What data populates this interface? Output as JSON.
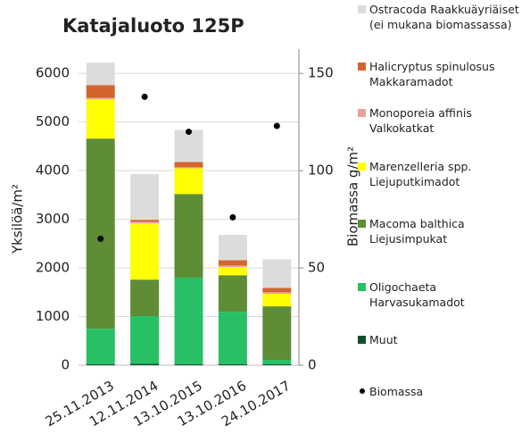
{
  "chart_data": {
    "type": "bar",
    "stacked": true,
    "title": "Katajaluoto 125P",
    "y_label": "Yksilöä/m²",
    "y2_label": "Biomassa g/m²",
    "categories": [
      "25.11.2013",
      "12.11.2014",
      "13.10.2015",
      "13.10.2016",
      "24.10.2017"
    ],
    "ylim": [
      0,
      6500
    ],
    "yticks": [
      0,
      1000,
      2000,
      3000,
      4000,
      5000,
      6000
    ],
    "y2lim": [
      0,
      162.5
    ],
    "y2ticks": [
      0,
      50,
      100,
      150
    ],
    "grid": true,
    "series": [
      {
        "name": "Muut",
        "color": "#0d4f2c",
        "values": [
          20,
          30,
          20,
          20,
          20
        ]
      },
      {
        "name": "Oligochaeta Harvasukamadot",
        "color": "#27c065",
        "values": [
          730,
          980,
          1780,
          1080,
          90
        ]
      },
      {
        "name": "Macoma balthica Liejusimpukat",
        "color": "#5f8d35",
        "values": [
          3910,
          750,
          1720,
          750,
          1100
        ]
      },
      {
        "name": "Marenzelleria spp. Liejuputkimadot",
        "color": "#ffff00",
        "values": [
          810,
          1160,
          530,
          170,
          260
        ]
      },
      {
        "name": "Monoporeia affinis Valkokatkat",
        "color": "#e8a09a",
        "values": [
          30,
          30,
          20,
          30,
          30
        ]
      },
      {
        "name": "Halicryptus spinulosus Makkaramadot",
        "color": "#d2652c",
        "values": [
          260,
          40,
          110,
          110,
          90
        ]
      },
      {
        "name": "Ostracoda Raakkuäyriäiset (ei mukana biomassassa)",
        "color": "#dcdcdc",
        "values": [
          460,
          940,
          660,
          520,
          590
        ]
      },
      {
        "name": "Biomassa",
        "color": "#000000",
        "type": "scatter",
        "axis": "y2",
        "values": [
          65,
          138,
          120,
          76,
          123
        ]
      }
    ]
  }
}
